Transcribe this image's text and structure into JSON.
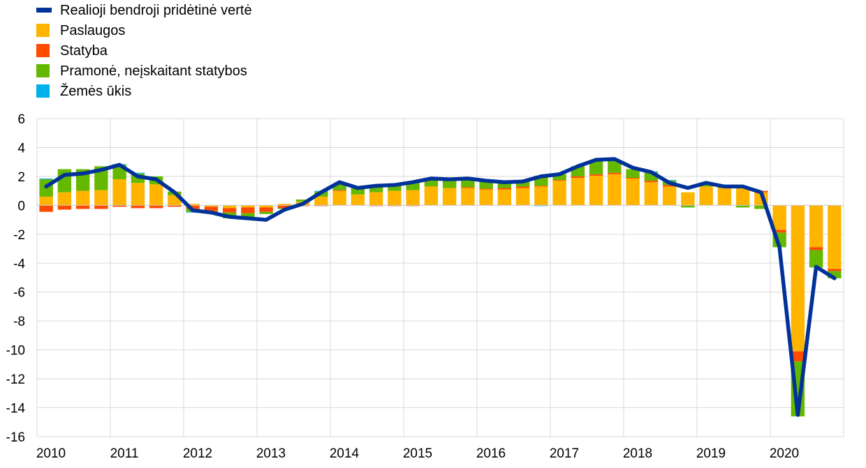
{
  "legend": [
    {
      "label": "Realioji bendroji pridėtinė vertė",
      "color": "#003299",
      "kind": "line"
    },
    {
      "label": "Paslaugos",
      "color": "#FFB400",
      "kind": "bar"
    },
    {
      "label": "Statyba",
      "color": "#FF4B00",
      "kind": "bar"
    },
    {
      "label": "Pramonė, neįskaitant statybos",
      "color": "#65B800",
      "kind": "bar"
    },
    {
      "label": "Žemės ūkis",
      "color": "#00B1EA",
      "kind": "bar"
    }
  ],
  "chart_data": {
    "type": "bar",
    "stacked": true,
    "quarters": [
      "2010Q1",
      "2010Q2",
      "2010Q3",
      "2010Q4",
      "2011Q1",
      "2011Q2",
      "2011Q3",
      "2011Q4",
      "2012Q1",
      "2012Q2",
      "2012Q3",
      "2012Q4",
      "2013Q1",
      "2013Q2",
      "2013Q3",
      "2013Q4",
      "2014Q1",
      "2014Q2",
      "2014Q3",
      "2014Q4",
      "2015Q1",
      "2015Q2",
      "2015Q3",
      "2015Q4",
      "2016Q1",
      "2016Q2",
      "2016Q3",
      "2016Q4",
      "2017Q1",
      "2017Q2",
      "2017Q3",
      "2017Q4",
      "2018Q1",
      "2018Q2",
      "2018Q3",
      "2018Q4",
      "2019Q1",
      "2019Q2",
      "2019Q3",
      "2019Q4",
      "2020Q1",
      "2020Q2",
      "2020Q3",
      "2020Q4"
    ],
    "x_ticks": [
      "2010",
      "2011",
      "2012",
      "2013",
      "2014",
      "2015",
      "2016",
      "2017",
      "2018",
      "2019",
      "2020"
    ],
    "y_ticks": [
      "6",
      "4",
      "2",
      "0",
      "-2",
      "-4",
      "-6",
      "-8",
      "-10",
      "-12",
      "-14",
      "-16"
    ],
    "ylim": [
      -16,
      6
    ],
    "grid": true,
    "series": [
      {
        "name": "Paslaugos",
        "color": "#FFB400",
        "values": [
          0.6,
          0.9,
          1.0,
          1.05,
          1.8,
          1.55,
          1.45,
          0.7,
          0.1,
          -0.1,
          -0.2,
          -0.15,
          -0.15,
          0.1,
          0.25,
          0.6,
          1.0,
          0.75,
          0.9,
          1.0,
          1.05,
          1.3,
          1.2,
          1.2,
          1.1,
          1.1,
          1.2,
          1.3,
          1.7,
          1.9,
          2.05,
          2.15,
          1.85,
          1.6,
          1.3,
          0.9,
          1.3,
          1.2,
          1.2,
          0.9,
          -1.7,
          -10.1,
          -2.9,
          -4.4
        ]
      },
      {
        "name": "Statyba",
        "color": "#FF4B00",
        "values": [
          -0.45,
          -0.3,
          -0.25,
          -0.25,
          -0.1,
          -0.2,
          -0.2,
          -0.1,
          -0.25,
          -0.3,
          -0.3,
          -0.4,
          -0.3,
          -0.2,
          -0.05,
          -0.05,
          0.05,
          0.0,
          -0.05,
          -0.05,
          -0.05,
          0.0,
          0.0,
          0.05,
          0.05,
          0.1,
          0.1,
          0.05,
          0.05,
          0.1,
          0.1,
          0.1,
          0.05,
          0.1,
          0.1,
          0.0,
          0.0,
          0.0,
          0.05,
          0.1,
          -0.2,
          -0.7,
          -0.2,
          -0.15
        ]
      },
      {
        "name": "Pramonė, neįskaitant statybos",
        "color": "#65B800",
        "values": [
          1.2,
          1.6,
          1.5,
          1.65,
          1.0,
          0.65,
          0.55,
          0.25,
          -0.2,
          -0.1,
          -0.4,
          -0.3,
          -0.15,
          -0.05,
          0.15,
          0.35,
          0.4,
          0.45,
          0.5,
          0.45,
          0.5,
          0.55,
          0.6,
          0.6,
          0.5,
          0.5,
          0.4,
          0.7,
          0.4,
          0.7,
          0.9,
          0.9,
          0.6,
          0.6,
          0.3,
          -0.15,
          0.2,
          0.1,
          -0.15,
          -0.25,
          -1.0,
          -3.8,
          -1.2,
          -0.5
        ]
      },
      {
        "name": "Žemės ūkis",
        "color": "#00B1EA",
        "values": [
          0.05,
          0.0,
          0.0,
          0.0,
          0.05,
          0.05,
          0.0,
          0.0,
          -0.05,
          0.0,
          0.0,
          0.0,
          0.0,
          0.0,
          0.0,
          0.05,
          0.05,
          0.0,
          0.0,
          0.0,
          0.0,
          0.05,
          0.0,
          0.0,
          0.0,
          0.0,
          0.0,
          -0.05,
          0.0,
          0.0,
          0.0,
          0.0,
          0.0,
          0.05,
          0.05,
          0.0,
          0.0,
          0.05,
          0.0,
          0.0,
          0.0,
          0.0,
          0.0,
          0.0
        ]
      },
      {
        "name": "Realioji bendroji pridėtinė vertė",
        "color": "#003299",
        "type": "line",
        "values": [
          1.3,
          2.1,
          2.2,
          2.45,
          2.8,
          2.0,
          1.8,
          0.9,
          -0.35,
          -0.5,
          -0.8,
          -0.9,
          -1.0,
          -0.3,
          0.1,
          0.9,
          1.6,
          1.2,
          1.35,
          1.4,
          1.6,
          1.85,
          1.8,
          1.85,
          1.7,
          1.6,
          1.65,
          2.0,
          2.15,
          2.7,
          3.15,
          3.2,
          2.6,
          2.3,
          1.55,
          1.2,
          1.55,
          1.3,
          1.3,
          0.9,
          -2.9,
          -14.5,
          -4.25,
          -5.05
        ]
      }
    ]
  }
}
